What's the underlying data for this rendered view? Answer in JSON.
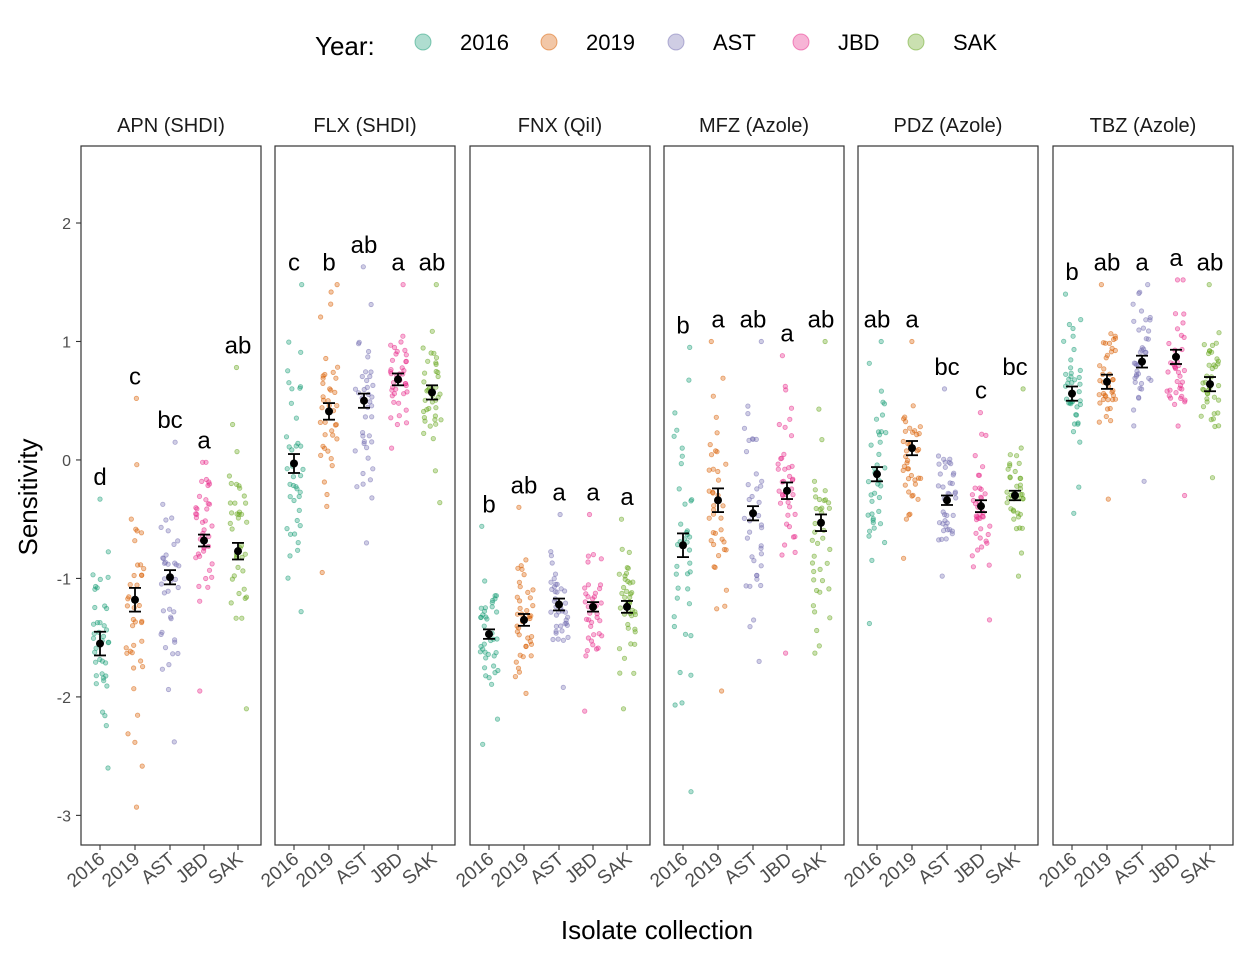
{
  "colors": {
    "2016": "#1b9e77",
    "2019": "#d95f02",
    "AST": "#7570b3",
    "JBD": "#e7298a",
    "SAK": "#66a61e"
  },
  "legend": {
    "title": "Year:",
    "entries": [
      "2016",
      "2019",
      "AST",
      "JBD",
      "SAK"
    ]
  },
  "chart_data": {
    "type": "scatter",
    "xlabel": "Isolate collection",
    "ylabel": "Sensitivity",
    "ylim": [
      -3.25,
      2.65
    ],
    "yticks": [
      -3,
      -2,
      -1,
      0,
      1,
      2
    ],
    "categories": [
      "2016",
      "2019",
      "AST",
      "JBD",
      "SAK"
    ],
    "panels": [
      {
        "title": "APN (SHDI)",
        "groups": [
          {
            "category": "2016",
            "mean": -1.55,
            "se": 0.1,
            "letter": "d",
            "range": [
              -2.6,
              -0.33
            ]
          },
          {
            "category": "2019",
            "mean": -1.18,
            "se": 0.1,
            "letter": "c",
            "range": [
              -2.93,
              0.52
            ]
          },
          {
            "category": "AST",
            "mean": -0.99,
            "se": 0.06,
            "letter": "bc",
            "range": [
              -2.38,
              0.15
            ]
          },
          {
            "category": "JBD",
            "mean": -0.68,
            "se": 0.05,
            "letter": "a",
            "range": [
              -1.95,
              -0.02
            ]
          },
          {
            "category": "SAK",
            "mean": -0.77,
            "se": 0.07,
            "letter": "ab",
            "range": [
              -2.1,
              0.78
            ]
          }
        ]
      },
      {
        "title": "FLX (SHDI)",
        "groups": [
          {
            "category": "2016",
            "mean": -0.03,
            "se": 0.08,
            "letter": "c",
            "range": [
              -1.28,
              1.48
            ]
          },
          {
            "category": "2019",
            "mean": 0.41,
            "se": 0.07,
            "letter": "b",
            "range": [
              -0.95,
              1.48
            ]
          },
          {
            "category": "AST",
            "mean": 0.5,
            "se": 0.06,
            "letter": "ab",
            "range": [
              -0.7,
              1.63
            ]
          },
          {
            "category": "JBD",
            "mean": 0.68,
            "se": 0.05,
            "letter": "a",
            "range": [
              0.1,
              1.48
            ]
          },
          {
            "category": "SAK",
            "mean": 0.57,
            "se": 0.06,
            "letter": "ab",
            "range": [
              -0.36,
              1.48
            ]
          }
        ]
      },
      {
        "title": "FNX (QiI)",
        "groups": [
          {
            "category": "2016",
            "mean": -1.47,
            "se": 0.04,
            "letter": "b",
            "range": [
              -2.4,
              -0.56
            ]
          },
          {
            "category": "2019",
            "mean": -1.35,
            "se": 0.05,
            "letter": "ab",
            "range": [
              -1.97,
              -0.4
            ]
          },
          {
            "category": "AST",
            "mean": -1.22,
            "se": 0.05,
            "letter": "a",
            "range": [
              -1.92,
              -0.46
            ]
          },
          {
            "category": "JBD",
            "mean": -1.24,
            "se": 0.04,
            "letter": "a",
            "range": [
              -2.12,
              -0.46
            ]
          },
          {
            "category": "SAK",
            "mean": -1.24,
            "se": 0.05,
            "letter": "a",
            "range": [
              -2.1,
              -0.5
            ]
          }
        ]
      },
      {
        "title": "MFZ (Azole)",
        "groups": [
          {
            "category": "2016",
            "mean": -0.72,
            "se": 0.1,
            "letter": "b",
            "range": [
              -2.8,
              0.95
            ]
          },
          {
            "category": "2019",
            "mean": -0.34,
            "se": 0.1,
            "letter": "a",
            "range": [
              -1.95,
              1.0
            ]
          },
          {
            "category": "AST",
            "mean": -0.45,
            "se": 0.06,
            "letter": "ab",
            "range": [
              -1.7,
              1.0
            ]
          },
          {
            "category": "JBD",
            "mean": -0.26,
            "se": 0.07,
            "letter": "a",
            "range": [
              -1.63,
              0.88
            ]
          },
          {
            "category": "SAK",
            "mean": -0.53,
            "se": 0.07,
            "letter": "ab",
            "range": [
              -1.63,
              1.0
            ]
          }
        ]
      },
      {
        "title": "PDZ (Azole)",
        "groups": [
          {
            "category": "2016",
            "mean": -0.12,
            "se": 0.06,
            "letter": "ab",
            "range": [
              -1.38,
              1.0
            ]
          },
          {
            "category": "2019",
            "mean": 0.1,
            "se": 0.06,
            "letter": "a",
            "range": [
              -0.83,
              1.0
            ]
          },
          {
            "category": "AST",
            "mean": -0.34,
            "se": 0.04,
            "letter": "bc",
            "range": [
              -0.98,
              0.6
            ]
          },
          {
            "category": "JBD",
            "mean": -0.39,
            "se": 0.05,
            "letter": "c",
            "range": [
              -1.35,
              0.4
            ]
          },
          {
            "category": "SAK",
            "mean": -0.3,
            "se": 0.04,
            "letter": "bc",
            "range": [
              -0.98,
              0.6
            ]
          }
        ]
      },
      {
        "title": "TBZ (Azole)",
        "groups": [
          {
            "category": "2016",
            "mean": 0.56,
            "se": 0.06,
            "letter": "b",
            "range": [
              -0.45,
              1.4
            ]
          },
          {
            "category": "2019",
            "mean": 0.66,
            "se": 0.06,
            "letter": "ab",
            "range": [
              -0.33,
              1.48
            ]
          },
          {
            "category": "AST",
            "mean": 0.83,
            "se": 0.05,
            "letter": "a",
            "range": [
              -0.18,
              1.48
            ]
          },
          {
            "category": "JBD",
            "mean": 0.87,
            "se": 0.06,
            "letter": "a",
            "range": [
              -0.3,
              1.52
            ]
          },
          {
            "category": "SAK",
            "mean": 0.64,
            "se": 0.06,
            "letter": "ab",
            "range": [
              -0.15,
              1.48
            ]
          }
        ]
      }
    ]
  }
}
